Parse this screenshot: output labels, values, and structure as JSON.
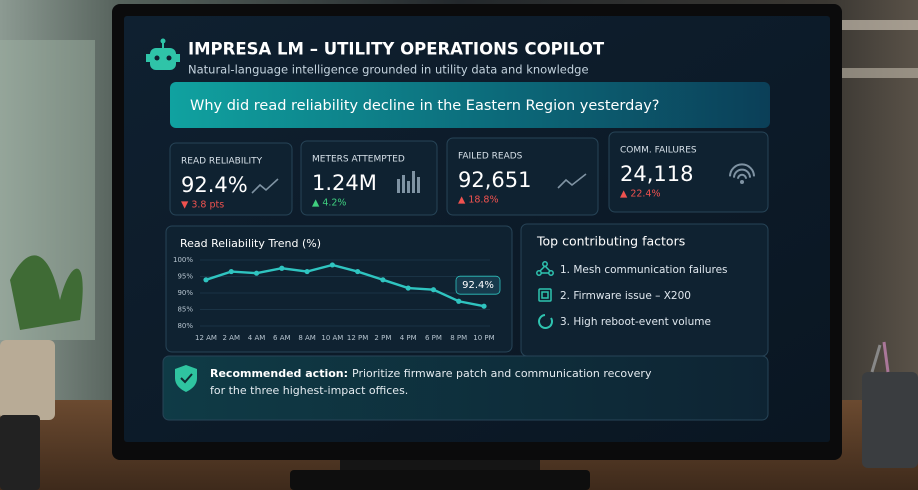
{
  "header": {
    "title": "IMPRESA LM – UTILITY OPERATIONS COPILOT",
    "subtitle": "Natural-language intelligence grounded in utility data and knowledge"
  },
  "query": "Why did read reliability decline in the Eastern Region yesterday?",
  "kpis": [
    {
      "label": "READ RELIABILITY",
      "value": "92.4%",
      "delta": "▼ 3.8 pts",
      "delta_color": "#f0524f"
    },
    {
      "label": "METERS ATTEMPTED",
      "value": "1.24M",
      "delta": "▲ 4.2%",
      "delta_color": "#3fcf7f"
    },
    {
      "label": "FAILED READS",
      "value": "92,651",
      "delta": "▲ 18.8%",
      "delta_color": "#f0524f"
    },
    {
      "label": "COMM. FAILURES",
      "value": "24,118",
      "delta": "▲ 22.4%",
      "delta_color": "#f0524f"
    }
  ],
  "chart_data": {
    "type": "line",
    "title": "Read Reliability Trend (%)",
    "categories": [
      "12 AM",
      "2 AM",
      "4 AM",
      "6 AM",
      "8 AM",
      "10 AM",
      "12 PM",
      "2 PM",
      "4 PM",
      "6 PM",
      "8 PM",
      "10 PM"
    ],
    "values": [
      94,
      96.5,
      96,
      97.5,
      96.5,
      98.5,
      96.5,
      94,
      91.5,
      91,
      87.5,
      86
    ],
    "color": "#2fc4c0",
    "ylim": [
      80,
      100
    ],
    "yticks": [
      {
        "value": 80,
        "label": "80%"
      },
      {
        "value": 85,
        "label": "85%"
      },
      {
        "value": 90,
        "label": "90%"
      },
      {
        "value": 95,
        "label": "95%"
      },
      {
        "value": 100,
        "label": "100%"
      }
    ],
    "annotation": "92.4%"
  },
  "factors": {
    "title": "Top contributing factors",
    "items": [
      "1. Mesh communication failures",
      "2. Firmware issue – X200",
      "3. High reboot-event volume"
    ]
  },
  "action": {
    "label": "Recommended action:",
    "lines": [
      "Prioritize firmware patch and communication recovery",
      "for the three highest-impact offices."
    ]
  }
}
